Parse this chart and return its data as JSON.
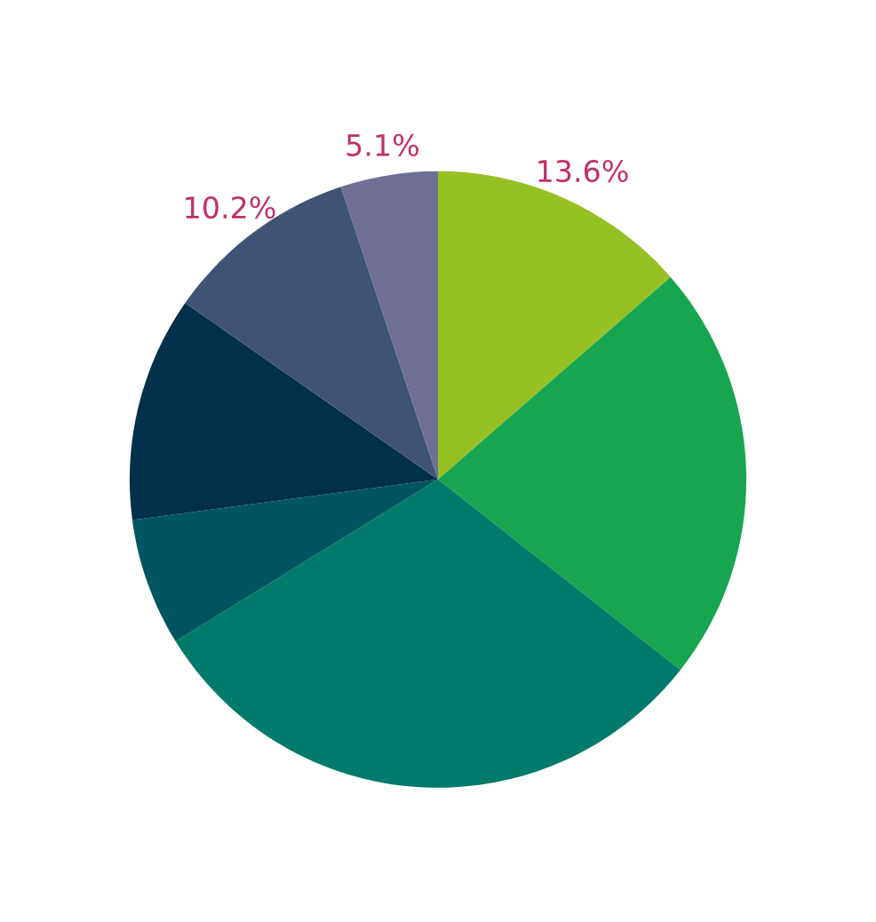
{
  "chart_data": {
    "type": "pie",
    "categories": [
      null,
      null,
      null,
      null,
      null,
      null,
      null
    ],
    "values": [
      13.6,
      22.0,
      30.6,
      6.7,
      11.8,
      10.2,
      5.1
    ],
    "colors": [
      "#97c024",
      "#17a550",
      "#007a6a",
      "#005560",
      "#00304a",
      "#3f5474",
      "#6f6f95"
    ],
    "value_labels": [
      "13.6%",
      null,
      null,
      null,
      null,
      "10.2%",
      "5.1%"
    ]
  }
}
